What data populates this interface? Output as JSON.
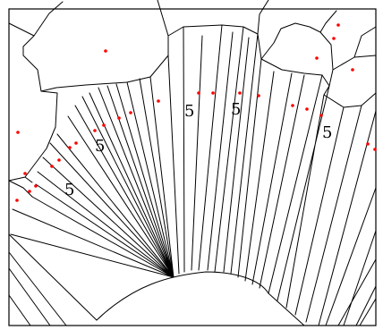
{
  "diagram": {
    "labels": [
      "5",
      "5",
      "5",
      "5",
      "5"
    ],
    "site_color": "#ff0000",
    "edge_color": "#000000",
    "background": "#ffffff"
  }
}
